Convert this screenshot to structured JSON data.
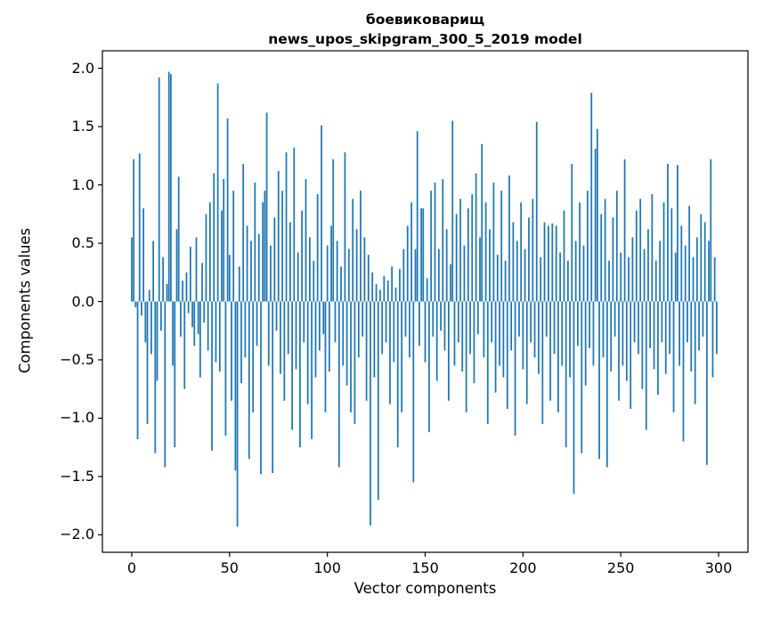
{
  "title": {
    "line1": "боевиковарищ",
    "line2": "news_upos_skipgram_300_5_2019 model"
  },
  "axes": {
    "xlabel": "Vector components",
    "ylabel": "Components values"
  },
  "chart_data": {
    "type": "bar",
    "title": "боевиковарищ\nnews_upos_skipgram_300_5_2019 model",
    "xlabel": "Vector components",
    "ylabel": "Components values",
    "xlim": [
      -15,
      315
    ],
    "ylim": [
      -2.15,
      2.15
    ],
    "grid": false,
    "legend": "none",
    "bar_color": "#1f77b4",
    "n_components": 300,
    "x_ticks": {
      "values": [
        0,
        50,
        100,
        150,
        200,
        250,
        300
      ],
      "labels": [
        "0",
        "50",
        "100",
        "150",
        "200",
        "250",
        "300"
      ]
    },
    "y_ticks": {
      "values": [
        2.0,
        1.5,
        1.0,
        0.5,
        0.0,
        -0.5,
        -1.0,
        -1.5,
        -2.0
      ],
      "labels": [
        "2.0",
        "1.5",
        "1.0",
        "0.5",
        "0.0",
        "−0.5",
        "−1.0",
        "−1.5",
        "−2.0"
      ]
    },
    "values": [
      0.55,
      1.22,
      -0.05,
      -1.18,
      1.27,
      -0.12,
      0.8,
      -0.35,
      -1.05,
      0.1,
      -0.45,
      0.52,
      -1.3,
      -0.68,
      1.92,
      -0.25,
      0.38,
      -1.42,
      0.15,
      1.97,
      1.95,
      -0.55,
      -1.25,
      0.62,
      1.07,
      -0.3,
      0.18,
      -0.75,
      0.25,
      -0.1,
      0.47,
      -0.22,
      -0.38,
      0.55,
      -0.28,
      -0.65,
      0.33,
      -0.18,
      0.75,
      -0.42,
      0.85,
      -1.28,
      1.1,
      -0.52,
      1.87,
      -0.6,
      0.78,
      1.05,
      -1.15,
      1.57,
      0.4,
      -0.85,
      0.95,
      -1.45,
      -1.93,
      0.3,
      -0.7,
      1.18,
      -0.48,
      0.65,
      -1.35,
      0.52,
      -0.95,
      1.02,
      -0.38,
      0.58,
      -1.48,
      0.85,
      0.95,
      1.62,
      -0.55,
      0.48,
      -1.47,
      0.72,
      -0.25,
      1.12,
      -0.62,
      0.95,
      -0.85,
      1.28,
      -0.45,
      0.68,
      -1.1,
      1.32,
      -0.58,
      0.42,
      -1.25,
      0.78,
      -0.35,
      1.05,
      -0.88,
      0.55,
      -1.18,
      0.35,
      -0.65,
      0.92,
      -0.42,
      1.51,
      -0.28,
      -0.95,
      0.48,
      -0.6,
      0.65,
      1.22,
      -0.35,
      0.52,
      -1.42,
      0.3,
      -0.55,
      1.28,
      -0.72,
      0.45,
      -0.95,
      0.88,
      -1.05,
      0.62,
      -0.48,
      0.95,
      -0.3,
      0.55,
      -0.85,
      0.4,
      -1.92,
      0.25,
      -0.65,
      0.15,
      -1.7,
      0.1,
      -0.45,
      0.22,
      -0.35,
      0.18,
      -0.88,
      0.3,
      -0.52,
      0.12,
      -1.25,
      0.28,
      -0.95,
      0.45,
      -0.3,
      0.65,
      -0.48,
      0.85,
      -1.55,
      0.45,
      1.46,
      -0.38,
      0.8,
      0.8,
      -0.52,
      0.2,
      -1.12,
      0.95,
      -0.3,
      1.02,
      -0.68,
      0.45,
      -0.25,
      1.05,
      -0.42,
      0.62,
      -0.85,
      0.32,
      1.55,
      -0.55,
      0.75,
      -0.35,
      0.88,
      -0.6,
      0.48,
      -0.95,
      0.8,
      -0.45,
      0.92,
      -0.7,
      1.1,
      -0.28,
      0.55,
      1.35,
      -0.48,
      0.85,
      -1.05,
      0.62,
      -0.35,
      1.02,
      -0.78,
      0.4,
      -0.55,
      0.95,
      -0.65,
      0.35,
      -0.92,
      1.08,
      -0.42,
      0.68,
      -1.15,
      0.52,
      -0.3,
      0.85,
      -0.58,
      0.45,
      -0.88,
      0.72,
      -0.35,
      0.88,
      -0.48,
      1.54,
      -0.62,
      0.38,
      -1.05,
      0.68,
      -0.3,
      0.65,
      -0.85,
      0.67,
      -0.45,
      0.65,
      -0.95,
      0.42,
      -0.55,
      0.78,
      -1.25,
      0.35,
      -0.65,
      1.18,
      -1.65,
      0.52,
      -0.38,
      0.85,
      -1.3,
      0.48,
      -0.72,
      0.95,
      -0.4,
      1.79,
      -0.55,
      1.31,
      1.48,
      -1.35,
      0.75,
      -0.48,
      0.88,
      -1.42,
      0.35,
      -0.6,
      0.72,
      -0.3,
      0.95,
      -0.85,
      0.42,
      -0.55,
      1.22,
      -0.68,
      0.38,
      -0.92,
      0.55,
      -0.35,
      0.78,
      -0.45,
      0.88,
      -0.75,
      0.45,
      -1.1,
      0.62,
      -0.4,
      0.92,
      -0.58,
      0.35,
      -0.8,
      0.52,
      -0.35,
      0.85,
      -0.62,
      1.18,
      -0.45,
      0.8,
      -0.95,
      0.42,
      1.17,
      -0.55,
      0.65,
      -1.2,
      0.48,
      -0.35,
      0.82,
      -0.6,
      0.38,
      -0.88,
      0.55,
      -0.42,
      0.75,
      -0.3,
      0.68,
      -1.4,
      0.52,
      1.22,
      -0.65,
      0.38,
      -0.45
    ]
  }
}
